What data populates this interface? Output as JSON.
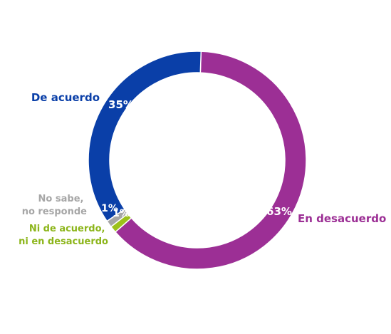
{
  "chart_data": {
    "type": "pie",
    "variant": "donut",
    "slices": [
      {
        "label": "En desacuerdo",
        "value": 63,
        "value_label": "63%",
        "color": "#9c2f95"
      },
      {
        "label": "Ni de acuerdo, ni en desacuerdo",
        "label_lines": [
          "Ni de acuerdo,",
          "ni en desacuerdo"
        ],
        "value": 1,
        "value_label": "1%",
        "color": "#9cc11a"
      },
      {
        "label": "No sabe, no responde",
        "label_lines": [
          "No sabe,",
          "no responde"
        ],
        "value": 1,
        "value_label": "1%",
        "color": "#a6a6a6"
      },
      {
        "label": "De acuerdo",
        "value": 35,
        "value_label": "35%",
        "color": "#0a3fa8"
      }
    ],
    "legend": "none"
  }
}
